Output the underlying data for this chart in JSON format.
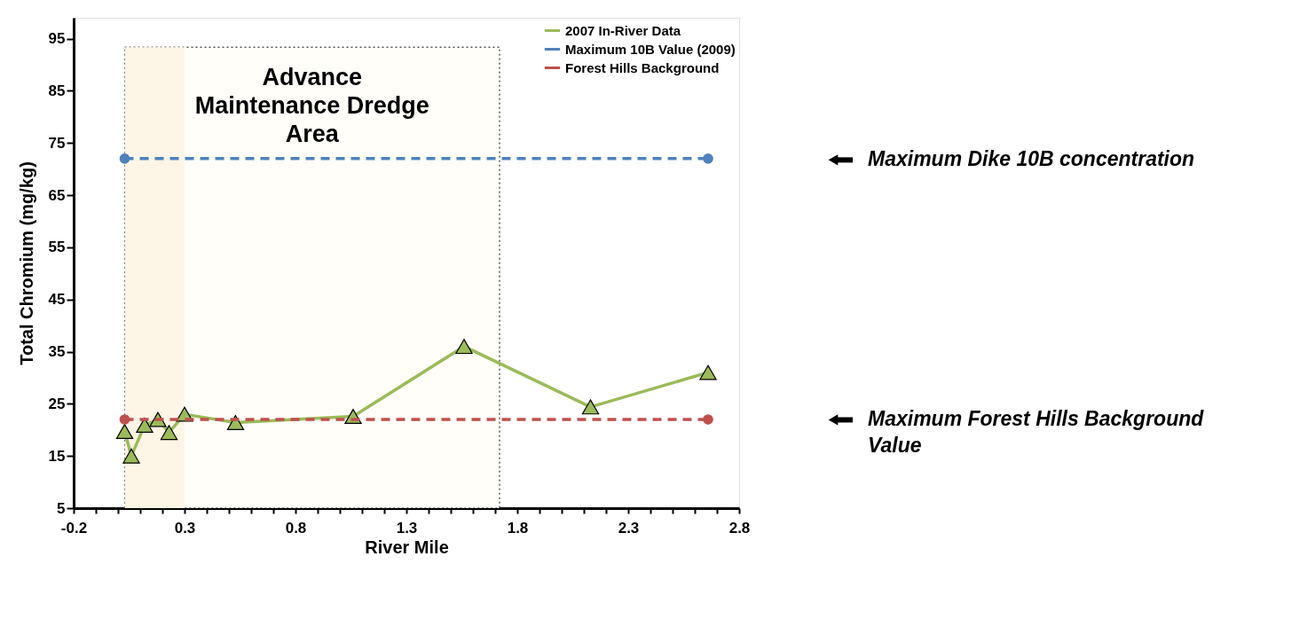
{
  "chart_data": {
    "type": "line",
    "xlabel": "River Mile",
    "ylabel": "Total Chromium (mg/kg)",
    "xlim": [
      -0.2,
      2.8
    ],
    "ylim": [
      5,
      99
    ],
    "xticks": [
      -0.2,
      {
        "value": -0.1,
        "label": null
      },
      {
        "value": 0.0,
        "label": null
      },
      {
        "value": 0.1,
        "label": null
      },
      {
        "value": 0.2,
        "label": null
      },
      0.3,
      {
        "value": 0.4,
        "label": null
      },
      {
        "value": 0.5,
        "label": null
      },
      {
        "value": 0.6,
        "label": null
      },
      {
        "value": 0.7,
        "label": null
      },
      0.8,
      {
        "value": 0.9,
        "label": null
      },
      {
        "value": 1.0,
        "label": null
      },
      {
        "value": 1.1,
        "label": null
      },
      {
        "value": 1.2,
        "label": null
      },
      1.3,
      {
        "value": 1.4,
        "label": null
      },
      {
        "value": 1.5,
        "label": null
      },
      {
        "value": 1.6,
        "label": null
      },
      {
        "value": 1.7,
        "label": null
      },
      1.8,
      {
        "value": 1.9,
        "label": null
      },
      {
        "value": 2.0,
        "label": null
      },
      {
        "value": 2.1,
        "label": null
      },
      {
        "value": 2.2,
        "label": null
      },
      2.3,
      {
        "value": 2.4,
        "label": null
      },
      {
        "value": 2.5,
        "label": null
      },
      {
        "value": 2.6,
        "label": null
      },
      {
        "value": 2.7,
        "label": null
      },
      2.8
    ],
    "yticks": [
      5,
      15,
      25,
      35,
      45,
      55,
      65,
      75,
      85,
      95
    ],
    "grid": false,
    "legend": "top right",
    "series": [
      {
        "name": "2007 In-River Data",
        "color": "#9bbb59",
        "marker": "triangle",
        "line_style": "solid",
        "x": [
          0.03,
          0.06,
          0.12,
          0.18,
          0.23,
          0.3,
          0.53,
          1.06,
          1.56,
          2.13,
          2.66
        ],
        "values": [
          19.7,
          15,
          20.9,
          22,
          19.5,
          23,
          21.4,
          22.6,
          36,
          24.4,
          31
        ]
      },
      {
        "name": "Maximum 10B Value (2009)",
        "color": "#4f81bd",
        "marker": "circle",
        "line_style": "dashed",
        "x": [
          0.03,
          2.66
        ],
        "values": [
          72,
          72
        ]
      },
      {
        "name": "Forest Hills Background",
        "color": "#c0504d",
        "marker": "circle",
        "line_style": "dashed",
        "x": [
          0.03,
          2.66
        ],
        "values": [
          22,
          22
        ]
      }
    ],
    "bands": [
      {
        "axis": "x",
        "from": 0.03,
        "to": 1.72,
        "label": "Advance Maintenance Dredge Area",
        "color": "#fffef8"
      },
      {
        "axis": "x",
        "from": 0.03,
        "to": 0.3,
        "color": "#fdf5e6"
      }
    ],
    "annotations": [
      "Maximum Dike 10B concentration",
      "Maximum Forest Hills Background Value"
    ]
  }
}
